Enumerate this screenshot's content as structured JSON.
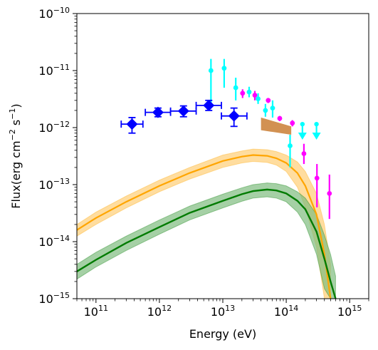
{
  "chart_data": {
    "type": "scatter",
    "xlabel": "Energy (eV)",
    "ylabel_base": "Flux(erg cm",
    "ylabel_exp1": "−2",
    "ylabel_mid": " s",
    "ylabel_exp2": "−1",
    "ylabel_end": ")",
    "xscale": "log",
    "yscale": "log",
    "xlim": [
      50000000000.0,
      2000000000000000.0
    ],
    "ylim": [
      1e-15,
      1e-10
    ],
    "x_ticks": [
      {
        "value": 100000000000.0,
        "base": "10",
        "exp": "11"
      },
      {
        "value": 1000000000000.0,
        "base": "10",
        "exp": "12"
      },
      {
        "value": 10000000000000.0,
        "base": "10",
        "exp": "13"
      },
      {
        "value": 100000000000000.0,
        "base": "10",
        "exp": "14"
      },
      {
        "value": 1000000000000000.0,
        "base": "10",
        "exp": "15"
      }
    ],
    "y_ticks": [
      {
        "value": 1e-15,
        "base": "10",
        "exp": "−15"
      },
      {
        "value": 1e-14,
        "base": "10",
        "exp": "−14"
      },
      {
        "value": 1e-13,
        "base": "10",
        "exp": "−13"
      },
      {
        "value": 1e-12,
        "base": "10",
        "exp": "−12"
      },
      {
        "value": 1e-11,
        "base": "10",
        "exp": "−11"
      },
      {
        "value": 1e-10,
        "base": "10",
        "exp": "−10"
      }
    ],
    "grid": false,
    "legend": "none",
    "colors": {
      "blue": "#0000ff",
      "cyan": "#00ffff",
      "magenta": "#ff00ff",
      "orange": "#ffa500",
      "orange_band": "#ffd587",
      "green": "#007b00",
      "green_band": "#7fbc7f",
      "brown": "#cd853f"
    },
    "blue_diamonds": [
      {
        "x": 370000000000.0,
        "y": 1.15e-12,
        "xlo": 250000000000.0,
        "xhi": 550000000000.0,
        "ylo": 8e-13,
        "yhi": 1.5e-12
      },
      {
        "x": 950000000000.0,
        "y": 1.85e-12,
        "xlo": 600000000000.0,
        "xhi": 1500000000000.0,
        "ylo": 1.55e-12,
        "yhi": 2.2e-12
      },
      {
        "x": 2400000000000.0,
        "y": 1.95e-12,
        "xlo": 1500000000000.0,
        "xhi": 3800000000000.0,
        "ylo": 1.55e-12,
        "yhi": 2.4e-12
      },
      {
        "x": 6000000000000.0,
        "y": 2.45e-12,
        "xlo": 3800000000000.0,
        "xhi": 9500000000000.0,
        "ylo": 2e-12,
        "yhi": 3e-12
      },
      {
        "x": 15000000000000.0,
        "y": 1.6e-12,
        "xlo": 9500000000000.0,
        "xhi": 24000000000000.0,
        "ylo": 1.05e-12,
        "yhi": 2.2e-12
      }
    ],
    "cyan_points": [
      {
        "x": 6500000000000.0,
        "y": 1e-11,
        "ylo": 2.5e-12,
        "yhi": 1.6e-11
      },
      {
        "x": 10500000000000.0,
        "y": 1.1e-11,
        "ylo": 5e-12,
        "yhi": 1.6e-11
      },
      {
        "x": 16000000000000.0,
        "y": 5e-12,
        "ylo": 3e-12,
        "yhi": 7.5e-12
      },
      {
        "x": 26000000000000.0,
        "y": 4.2e-12,
        "ylo": 3.4e-12,
        "yhi": 5.2e-12
      },
      {
        "x": 36000000000000.0,
        "y": 3.2e-12,
        "ylo": 2.6e-12,
        "yhi": 4e-12
      },
      {
        "x": 47000000000000.0,
        "y": 2e-12,
        "ylo": 1.55e-12,
        "yhi": 2.6e-12
      },
      {
        "x": 61000000000000.0,
        "y": 2.2e-12,
        "ylo": 1.5e-12,
        "yhi": 3e-12
      },
      {
        "x": 115000000000000.0,
        "y": 4.8e-13,
        "ylo": 2e-13,
        "yhi": 7.5e-13
      }
    ],
    "cyan_upper_limits": [
      {
        "x": 180000000000000.0,
        "y": 1.15e-12,
        "arrow_to": 6.5e-13
      },
      {
        "x": 300000000000000.0,
        "y": 1.15e-12,
        "arrow_to": 6.5e-13
      }
    ],
    "magenta_points": [
      {
        "x": 20500000000000.0,
        "y": 4e-12,
        "ylo": 3.3e-12,
        "yhi": 4.7e-12
      },
      {
        "x": 32000000000000.0,
        "y": 3.7e-12,
        "ylo": 3e-12,
        "yhi": 4.4e-12
      },
      {
        "x": 52000000000000.0,
        "y": 3e-12,
        "ylo": 2.7e-12,
        "yhi": 3.3e-12
      },
      {
        "x": 79000000000000.0,
        "y": 1.45e-12,
        "ylo": 1.3e-12,
        "yhi": 1.6e-12
      },
      {
        "x": 125000000000000.0,
        "y": 1.2e-12,
        "ylo": 1.05e-12,
        "yhi": 1.35e-12
      },
      {
        "x": 190000000000000.0,
        "y": 3.5e-13,
        "ylo": 2.3e-13,
        "yhi": 5.2e-13
      },
      {
        "x": 305000000000000.0,
        "y": 1.3e-13,
        "ylo": 4e-14,
        "yhi": 2.3e-13
      },
      {
        "x": 480000000000000.0,
        "y": 7e-14,
        "ylo": 2.5e-14,
        "yhi": 1.5e-13
      }
    ],
    "brown_band": {
      "x": [
        40000000000000.0,
        120000000000000.0
      ],
      "upper": [
        1.5e-12,
        1.05e-12
      ],
      "lower": [
        9e-13,
        7.5e-13
      ]
    },
    "orange_curve": {
      "x": [
        50000000000.0,
        100000000000.0,
        300000000000.0,
        1000000000000.0,
        3000000000000.0,
        10000000000000.0,
        20000000000000.0,
        30000000000000.0,
        50000000000000.0,
        70000000000000.0,
        100000000000000.0,
        150000000000000.0,
        200000000000000.0,
        300000000000000.0,
        400000000000000.0,
        500000000000000.0
      ],
      "y": [
        1.6e-14,
        2.6e-14,
        5e-14,
        9.5e-14,
        1.6e-13,
        2.6e-13,
        3.1e-13,
        3.3e-13,
        3.2e-13,
        2.9e-13,
        2.4e-13,
        1.6e-13,
        9.5e-14,
        3e-14,
        6e-15,
        1e-15
      ],
      "band_upper": [
        2e-14,
        3.3e-14,
        6.3e-14,
        1.2e-13,
        2e-13,
        3.3e-13,
        3.9e-13,
        4.2e-13,
        4.1e-13,
        3.8e-13,
        3.3e-13,
        2.5e-13,
        1.7e-13,
        7e-14,
        2e-14,
        4e-15
      ],
      "band_lower": [
        1.25e-14,
        2e-14,
        3.9e-14,
        7.5e-14,
        1.25e-13,
        2e-13,
        2.4e-13,
        2.55e-13,
        2.45e-13,
        2.2e-13,
        1.7e-13,
        9e-14,
        4e-14,
        8e-15,
        1e-15,
        1e-15
      ]
    },
    "green_curve": {
      "x": [
        50000000000.0,
        100000000000.0,
        300000000000.0,
        1000000000000.0,
        3000000000000.0,
        10000000000000.0,
        20000000000000.0,
        30000000000000.0,
        50000000000000.0,
        70000000000000.0,
        100000000000000.0,
        150000000000000.0,
        200000000000000.0,
        300000000000000.0,
        400000000000000.0,
        500000000000000.0,
        600000000000000.0
      ],
      "y": [
        3e-15,
        4.8e-15,
        9.5e-15,
        1.8e-14,
        3.2e-14,
        5.2e-14,
        6.8e-14,
        7.7e-14,
        8.2e-14,
        7.9e-14,
        7e-14,
        5.2e-14,
        3.7e-14,
        1.5e-14,
        5e-15,
        2e-15,
        1e-15
      ],
      "band_upper": [
        4e-15,
        6.5e-15,
        1.25e-14,
        2.4e-14,
        4.2e-14,
        6.8e-14,
        8.8e-14,
        1e-13,
        1.07e-13,
        1.04e-13,
        9.5e-14,
        7.5e-14,
        5.8e-14,
        3e-14,
        1.3e-14,
        6e-15,
        2.5e-15
      ],
      "band_lower": [
        2.2e-15,
        3.6e-15,
        7e-15,
        1.35e-14,
        2.4e-14,
        3.9e-14,
        5.1e-14,
        5.8e-14,
        6.1e-14,
        5.8e-14,
        5e-14,
        3.3e-14,
        2e-14,
        6e-15,
        1.5e-15,
        1e-15,
        1e-15
      ]
    }
  }
}
